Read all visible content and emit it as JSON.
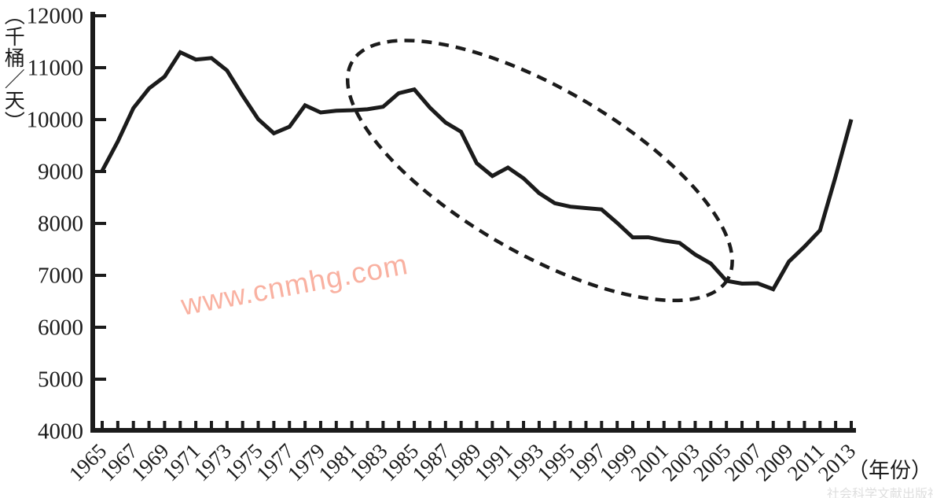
{
  "chart_data": {
    "type": "line",
    "title": "",
    "ylabel": "（千桶／天）",
    "xlabel": "（年份）",
    "ylim": [
      4000,
      12000
    ],
    "ytick_step": 1000,
    "xlim": [
      1965,
      2013
    ],
    "xtick_every_years": 1,
    "xlabel_every_years": 2,
    "grid": false,
    "legend": false,
    "line_color": "#1b1b1b",
    "x": [
      1965,
      1966,
      1967,
      1968,
      1969,
      1970,
      1971,
      1972,
      1973,
      1974,
      1975,
      1976,
      1977,
      1978,
      1979,
      1980,
      1981,
      1982,
      1983,
      1984,
      1985,
      1986,
      1987,
      1988,
      1989,
      1990,
      1991,
      1992,
      1993,
      1994,
      1995,
      1996,
      1997,
      1998,
      1999,
      2000,
      2001,
      2002,
      2003,
      2004,
      2005,
      2006,
      2007,
      2008,
      2009,
      2010,
      2011,
      2012,
      2013
    ],
    "values": [
      9014,
      9579,
      10219,
      10600,
      10828,
      11297,
      11156,
      11185,
      10946,
      10461,
      10007,
      9736,
      9862,
      10274,
      10136,
      10170,
      10180,
      10199,
      10247,
      10508,
      10580,
      10231,
      9944,
      9765,
      9159,
      8914,
      9076,
      8868,
      8583,
      8389,
      8322,
      8295,
      8269,
      8011,
      7731,
      7733,
      7669,
      7626,
      7400,
      7228,
      6895,
      6841,
      6847,
      6734,
      7263,
      7552,
      7868,
      8904,
      10003
    ],
    "ytick_labels": [
      "12000",
      "11000",
      "10000",
      "9000",
      "8000",
      "7000",
      "6000",
      "5000",
      "4000"
    ],
    "xtick_labels": [
      "1965",
      "1967",
      "1969",
      "1971",
      "1973",
      "1975",
      "1977",
      "1979",
      "1981",
      "1983",
      "1985",
      "1987",
      "1989",
      "1991",
      "1993",
      "1995",
      "1997",
      "1999",
      "2001",
      "2003",
      "2005",
      "2007",
      "2009",
      "2011",
      "2013"
    ],
    "annotation_ellipse": {
      "style": "dashed",
      "highlights": "decline period circled (about 1983 to 2005)",
      "center_year": 1993.05,
      "center_value": 9020,
      "rx_years": 13.9,
      "ry_value": 1590,
      "rotate_deg": 30
    }
  },
  "watermarks": {
    "site": "www.cnmhg.com",
    "site_color": "#f9ad9d",
    "publisher": "社会科学文献出版社",
    "publisher_color": "#bfbfbf"
  }
}
